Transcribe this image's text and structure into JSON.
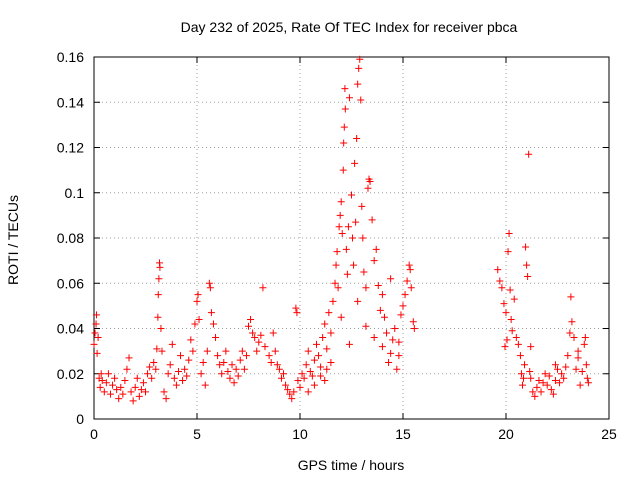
{
  "chart_data": {
    "type": "scatter",
    "title": "Day 232 of 2025, Rate Of TEC Index for receiver pbca",
    "xlabel": "GPS time / hours",
    "ylabel": "ROTI / TECUs",
    "xlim": [
      0,
      25
    ],
    "ylim": [
      0,
      0.16
    ],
    "x_ticks": [
      0,
      5,
      10,
      15,
      20,
      25
    ],
    "y_ticks": [
      0,
      0.02,
      0.04,
      0.06,
      0.08,
      0.1,
      0.12,
      0.14,
      0.16
    ],
    "x_tick_labels": [
      "0",
      "5",
      "10",
      "15",
      "20",
      "25"
    ],
    "y_tick_labels": [
      "0",
      "0.02",
      "0.04",
      "0.06",
      "0.08",
      "0.1",
      "0.12",
      "0.14",
      "0.16"
    ],
    "grid": true,
    "marker": "plus",
    "color": "#ff0000",
    "series": [
      {
        "points": [
          [
            0.0,
            0.033
          ],
          [
            0.05,
            0.038
          ],
          [
            0.1,
            0.042
          ],
          [
            0.12,
            0.046
          ],
          [
            0.15,
            0.029
          ],
          [
            0.2,
            0.036
          ],
          [
            0.25,
            0.018
          ],
          [
            0.3,
            0.014
          ],
          [
            0.35,
            0.02
          ],
          [
            0.4,
            0.017
          ],
          [
            0.5,
            0.012
          ],
          [
            0.6,
            0.016
          ],
          [
            0.7,
            0.02
          ],
          [
            0.8,
            0.011
          ],
          [
            0.9,
            0.015
          ],
          [
            1.0,
            0.018
          ],
          [
            1.1,
            0.013
          ],
          [
            1.2,
            0.009
          ],
          [
            1.3,
            0.014
          ],
          [
            1.4,
            0.011
          ],
          [
            1.5,
            0.017
          ],
          [
            1.6,
            0.022
          ],
          [
            1.7,
            0.027
          ],
          [
            1.8,
            0.012
          ],
          [
            1.9,
            0.008
          ],
          [
            2.0,
            0.014
          ],
          [
            2.1,
            0.018
          ],
          [
            2.2,
            0.01
          ],
          [
            2.3,
            0.013
          ],
          [
            2.4,
            0.016
          ],
          [
            2.5,
            0.012
          ],
          [
            2.6,
            0.02
          ],
          [
            2.7,
            0.023
          ],
          [
            2.8,
            0.018
          ],
          [
            2.9,
            0.025
          ],
          [
            3.0,
            0.022
          ],
          [
            3.05,
            0.031
          ],
          [
            3.1,
            0.045
          ],
          [
            3.12,
            0.055
          ],
          [
            3.15,
            0.062
          ],
          [
            3.18,
            0.069
          ],
          [
            3.2,
            0.067
          ],
          [
            3.25,
            0.04
          ],
          [
            3.3,
            0.03
          ],
          [
            3.4,
            0.012
          ],
          [
            3.5,
            0.009
          ],
          [
            3.6,
            0.02
          ],
          [
            3.7,
            0.024
          ],
          [
            3.8,
            0.033
          ],
          [
            3.9,
            0.018
          ],
          [
            4.0,
            0.015
          ],
          [
            4.1,
            0.021
          ],
          [
            4.2,
            0.028
          ],
          [
            4.3,
            0.017
          ],
          [
            4.4,
            0.022
          ],
          [
            4.5,
            0.019
          ],
          [
            4.6,
            0.026
          ],
          [
            4.7,
            0.035
          ],
          [
            4.8,
            0.03
          ],
          [
            4.9,
            0.042
          ],
          [
            5.0,
            0.052
          ],
          [
            5.05,
            0.055
          ],
          [
            5.1,
            0.044
          ],
          [
            5.2,
            0.02
          ],
          [
            5.3,
            0.025
          ],
          [
            5.4,
            0.015
          ],
          [
            5.5,
            0.03
          ],
          [
            5.6,
            0.06
          ],
          [
            5.65,
            0.058
          ],
          [
            5.7,
            0.047
          ],
          [
            5.8,
            0.042
          ],
          [
            5.9,
            0.036
          ],
          [
            6.0,
            0.028
          ],
          [
            6.1,
            0.024
          ],
          [
            6.2,
            0.02
          ],
          [
            6.3,
            0.025
          ],
          [
            6.4,
            0.03
          ],
          [
            6.5,
            0.021
          ],
          [
            6.6,
            0.018
          ],
          [
            6.7,
            0.024
          ],
          [
            6.8,
            0.016
          ],
          [
            6.9,
            0.022
          ],
          [
            7.0,
            0.019
          ],
          [
            7.1,
            0.026
          ],
          [
            7.2,
            0.03
          ],
          [
            7.3,
            0.022
          ],
          [
            7.4,
            0.028
          ],
          [
            7.5,
            0.041
          ],
          [
            7.6,
            0.044
          ],
          [
            7.7,
            0.038
          ],
          [
            7.8,
            0.036
          ],
          [
            7.9,
            0.03
          ],
          [
            8.0,
            0.034
          ],
          [
            8.1,
            0.037
          ],
          [
            8.2,
            0.058
          ],
          [
            8.3,
            0.032
          ],
          [
            8.5,
            0.028
          ],
          [
            8.6,
            0.025
          ],
          [
            8.7,
            0.038
          ],
          [
            8.8,
            0.03
          ],
          [
            8.9,
            0.024
          ],
          [
            9.0,
            0.022
          ],
          [
            9.1,
            0.018
          ],
          [
            9.2,
            0.02
          ],
          [
            9.3,
            0.015
          ],
          [
            9.4,
            0.013
          ],
          [
            9.5,
            0.011
          ],
          [
            9.6,
            0.009
          ],
          [
            9.7,
            0.012
          ],
          [
            9.8,
            0.049
          ],
          [
            9.85,
            0.047
          ],
          [
            9.9,
            0.017
          ],
          [
            10.0,
            0.014
          ],
          [
            10.1,
            0.02
          ],
          [
            10.2,
            0.018
          ],
          [
            10.3,
            0.024
          ],
          [
            10.4,
            0.03
          ],
          [
            10.5,
            0.021
          ],
          [
            10.6,
            0.019
          ],
          [
            10.7,
            0.026
          ],
          [
            10.8,
            0.033
          ],
          [
            10.9,
            0.028
          ],
          [
            11.0,
            0.023
          ],
          [
            11.1,
            0.036
          ],
          [
            11.2,
            0.042
          ],
          [
            11.3,
            0.031
          ],
          [
            11.4,
            0.047
          ],
          [
            11.5,
            0.038
          ],
          [
            11.6,
            0.052
          ],
          [
            11.7,
            0.06
          ],
          [
            11.75,
            0.068
          ],
          [
            11.8,
            0.074
          ],
          [
            11.85,
            0.058
          ],
          [
            11.9,
            0.085
          ],
          [
            11.95,
            0.09
          ],
          [
            12.0,
            0.096
          ],
          [
            12.05,
            0.082
          ],
          [
            12.1,
            0.11
          ],
          [
            12.12,
            0.122
          ],
          [
            12.15,
            0.129
          ],
          [
            12.18,
            0.146
          ],
          [
            12.2,
            0.137
          ],
          [
            12.25,
            0.075
          ],
          [
            12.3,
            0.064
          ],
          [
            12.35,
            0.085
          ],
          [
            12.4,
            0.142
          ],
          [
            12.5,
            0.099
          ],
          [
            12.55,
            0.08
          ],
          [
            12.6,
            0.068
          ],
          [
            12.65,
            0.113
          ],
          [
            12.7,
            0.087
          ],
          [
            12.75,
            0.124
          ],
          [
            12.8,
            0.148
          ],
          [
            12.85,
            0.155
          ],
          [
            12.9,
            0.159
          ],
          [
            12.95,
            0.141
          ],
          [
            13.0,
            0.094
          ],
          [
            13.05,
            0.08
          ],
          [
            13.1,
            0.065
          ],
          [
            13.2,
            0.058
          ],
          [
            13.3,
            0.102
          ],
          [
            13.35,
            0.106
          ],
          [
            13.4,
            0.105
          ],
          [
            13.5,
            0.088
          ],
          [
            13.6,
            0.07
          ],
          [
            13.7,
            0.075
          ],
          [
            13.8,
            0.059
          ],
          [
            13.9,
            0.048
          ],
          [
            14.0,
            0.032
          ],
          [
            14.1,
            0.045
          ],
          [
            14.2,
            0.038
          ],
          [
            14.3,
            0.025
          ],
          [
            14.4,
            0.029
          ],
          [
            14.5,
            0.035
          ],
          [
            14.6,
            0.04
          ],
          [
            14.7,
            0.022
          ],
          [
            14.8,
            0.028
          ],
          [
            14.9,
            0.046
          ],
          [
            15.0,
            0.05
          ],
          [
            15.1,
            0.055
          ],
          [
            15.2,
            0.061
          ],
          [
            15.3,
            0.068
          ],
          [
            15.35,
            0.066
          ],
          [
            15.4,
            0.058
          ],
          [
            15.5,
            0.043
          ],
          [
            15.55,
            0.04
          ],
          [
            11.2,
            0.017
          ],
          [
            11.5,
            0.025
          ],
          [
            12.0,
            0.045
          ],
          [
            12.4,
            0.033
          ],
          [
            12.8,
            0.052
          ],
          [
            13.2,
            0.041
          ],
          [
            13.6,
            0.036
          ],
          [
            14.0,
            0.055
          ],
          [
            14.4,
            0.062
          ],
          [
            14.8,
            0.034
          ],
          [
            10.4,
            0.012
          ],
          [
            10.7,
            0.015
          ],
          [
            11.0,
            0.019
          ],
          [
            11.3,
            0.022
          ],
          [
            19.6,
            0.066
          ],
          [
            19.7,
            0.061
          ],
          [
            19.8,
            0.058
          ],
          [
            19.9,
            0.051
          ],
          [
            19.95,
            0.032
          ],
          [
            20.0,
            0.047
          ],
          [
            20.05,
            0.035
          ],
          [
            20.1,
            0.074
          ],
          [
            20.15,
            0.082
          ],
          [
            20.2,
            0.057
          ],
          [
            20.25,
            0.044
          ],
          [
            20.3,
            0.039
          ],
          [
            20.4,
            0.053
          ],
          [
            20.5,
            0.036
          ],
          [
            20.6,
            0.033
          ],
          [
            20.7,
            0.028
          ],
          [
            20.75,
            0.02
          ],
          [
            20.8,
            0.015
          ],
          [
            20.85,
            0.018
          ],
          [
            20.9,
            0.024
          ],
          [
            20.95,
            0.076
          ],
          [
            21.0,
            0.068
          ],
          [
            21.05,
            0.063
          ],
          [
            21.1,
            0.117
          ],
          [
            21.15,
            0.021
          ],
          [
            21.2,
            0.018
          ],
          [
            21.3,
            0.012
          ],
          [
            21.4,
            0.01
          ],
          [
            21.5,
            0.014
          ],
          [
            21.6,
            0.017
          ],
          [
            21.7,
            0.012
          ],
          [
            21.8,
            0.016
          ],
          [
            21.9,
            0.02
          ],
          [
            22.0,
            0.015
          ],
          [
            22.1,
            0.019
          ],
          [
            22.2,
            0.013
          ],
          [
            22.3,
            0.011
          ],
          [
            22.4,
            0.017
          ],
          [
            22.5,
            0.022
          ],
          [
            22.6,
            0.016
          ],
          [
            22.7,
            0.02
          ],
          [
            22.8,
            0.018
          ],
          [
            22.9,
            0.023
          ],
          [
            23.0,
            0.028
          ],
          [
            23.1,
            0.038
          ],
          [
            23.15,
            0.054
          ],
          [
            23.2,
            0.043
          ],
          [
            23.3,
            0.036
          ],
          [
            23.4,
            0.022
          ],
          [
            23.5,
            0.027
          ],
          [
            23.6,
            0.015
          ],
          [
            23.7,
            0.021
          ],
          [
            23.8,
            0.033
          ],
          [
            23.85,
            0.036
          ],
          [
            23.9,
            0.024
          ],
          [
            23.95,
            0.018
          ],
          [
            24.0,
            0.016
          ],
          [
            21.2,
            0.032
          ],
          [
            22.4,
            0.024
          ],
          [
            23.5,
            0.03
          ]
        ]
      }
    ]
  }
}
